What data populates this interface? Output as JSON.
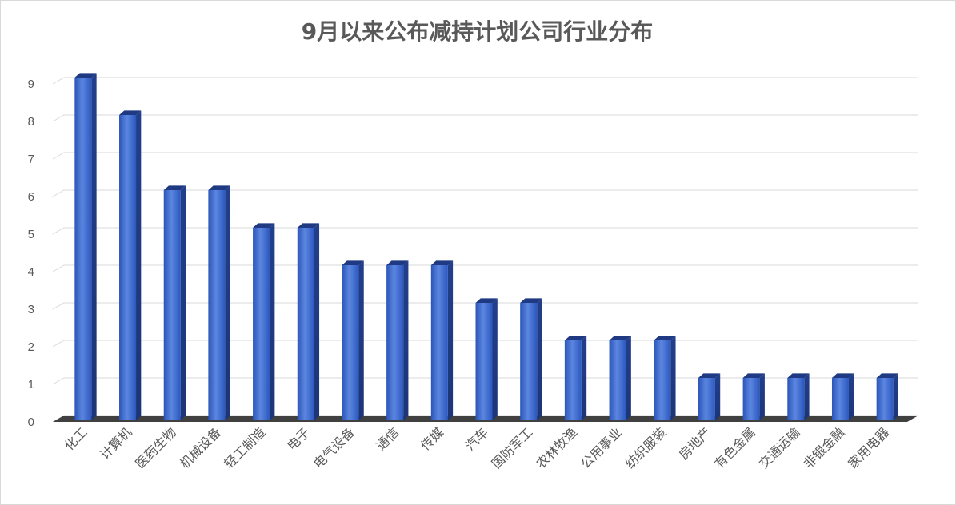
{
  "chart_data": {
    "type": "bar",
    "title": "9月以来公布减持计划公司行业分布",
    "xlabel": "",
    "ylabel": "",
    "ylim": [
      0,
      9
    ],
    "yticks": [
      0,
      1,
      2,
      3,
      4,
      5,
      6,
      7,
      8,
      9
    ],
    "grid": true,
    "legend": "none",
    "bar_color": "#3a63c4",
    "categories": [
      "化工",
      "计算机",
      "医药生物",
      "机械设备",
      "轻工制造",
      "电子",
      "电气设备",
      "通信",
      "传媒",
      "汽车",
      "国防军工",
      "农林牧渔",
      "公用事业",
      "纺织服装",
      "房地产",
      "有色金属",
      "交通运输",
      "非银金融",
      "家用电器"
    ],
    "values": [
      9,
      8,
      6,
      6,
      5,
      5,
      4,
      4,
      4,
      3,
      3,
      2,
      2,
      2,
      1,
      1,
      1,
      1,
      1
    ]
  }
}
